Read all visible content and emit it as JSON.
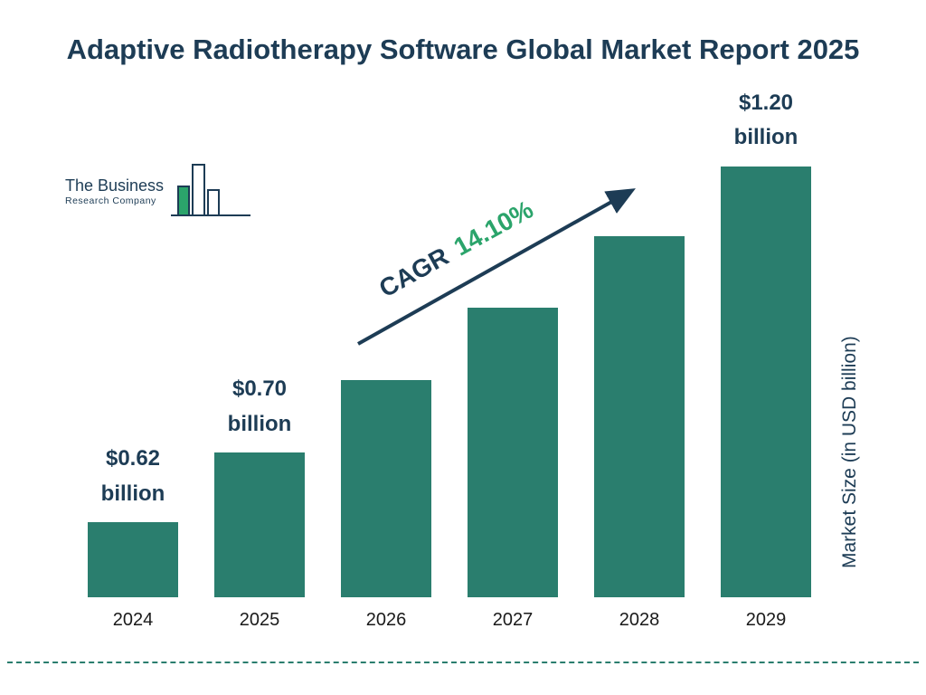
{
  "title": "Adaptive Radiotherapy Software Global Market Report 2025",
  "logo": {
    "line1": "The Business",
    "line2": "Research Company"
  },
  "cagr": {
    "prefix": "CAGR",
    "value": "14.10%"
  },
  "chart_data": {
    "type": "bar",
    "title": "Adaptive Radiotherapy Software Global Market Report 2025",
    "categories": [
      "2024",
      "2025",
      "2026",
      "2027",
      "2028",
      "2029"
    ],
    "values": [
      0.62,
      0.7,
      0.8,
      0.91,
      1.05,
      1.2
    ],
    "value_labels": [
      {
        "amount": "$0.62",
        "unit": "billion"
      },
      {
        "amount": "$0.70",
        "unit": "billion"
      },
      null,
      null,
      null,
      {
        "amount": "$1.20",
        "unit": "billion"
      }
    ],
    "bar_heights_pct": [
      17.4,
      33.5,
      50.2,
      66.9,
      83.4,
      100
    ],
    "xlabel": "",
    "ylabel": "Market Size (in USD billion)",
    "cagr_percent": 14.1,
    "legend": "none",
    "grid": false,
    "colors": {
      "bar": "#2a7e6e",
      "title": "#1d3c55",
      "cagr_text": "#1d3c55",
      "cagr_value": "#2ba46b",
      "arrow": "#1d3c55",
      "dashed_divider": "#2a7e6e",
      "logo_green": "#2ba46b"
    }
  }
}
